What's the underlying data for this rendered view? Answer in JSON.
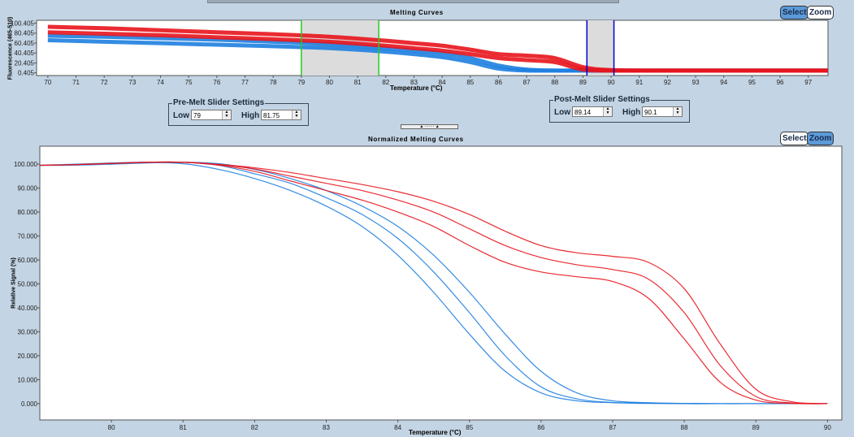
{
  "top_panel": {
    "title": "Melting Curves",
    "select_label": "Select",
    "zoom_label": "Zoom",
    "active_mode": "Select",
    "pre_melt": {
      "legend": "Pre-Melt Slider Settings",
      "low_label": "Low",
      "low_value": "79",
      "high_label": "High",
      "high_value": "81.75"
    },
    "post_melt": {
      "legend": "Post-Melt Slider Settings",
      "low_label": "Low",
      "low_value": "89.14",
      "high_label": "High",
      "high_value": "90.1"
    }
  },
  "bottom_panel": {
    "title": "Normalized Melting Curves",
    "select_label": "Select",
    "zoom_label": "Zoom",
    "active_mode": "Zoom"
  },
  "colors": {
    "group_red": "#e8141c",
    "group_blue": "#1e7fe0",
    "pre_melt_cursor": "#22cc22",
    "post_melt_cursor": "#0000cc",
    "slider_region": "#dcdcdc",
    "active_button": "#5b9ad8"
  },
  "chart_data": [
    {
      "type": "line",
      "title": "Melting Curves",
      "xlabel": "Temperature (°C)",
      "ylabel": "Fluorescence (465-510)",
      "xlim": [
        69.6,
        97.7
      ],
      "ylim": [
        -5,
        106
      ],
      "xticks": [
        70,
        71,
        72,
        73,
        74,
        75,
        76,
        77,
        78,
        79,
        80,
        81,
        82,
        83,
        84,
        85,
        86,
        87,
        88,
        89,
        90,
        91,
        92,
        93,
        94,
        95,
        96,
        97
      ],
      "yticks": [
        "100.405",
        "80.405",
        "60.405",
        "40.405",
        "20.405",
        "0.405"
      ],
      "ytick_values": [
        100.405,
        80.405,
        60.405,
        40.405,
        20.405,
        0.405
      ],
      "grid": false,
      "regions": [
        {
          "name": "pre-melt",
          "low": 79,
          "high": 81.75,
          "cursor_color": "#22cc22"
        },
        {
          "name": "post-melt",
          "low": 89.14,
          "high": 90.1,
          "cursor_color": "#0000cc"
        }
      ],
      "x": [
        70,
        72,
        74,
        76,
        78,
        80,
        82,
        83,
        84,
        85,
        86,
        87,
        88,
        89,
        90,
        92,
        97.7
      ],
      "series": [
        {
          "group": "blue",
          "color": "#1e7fe0",
          "values": [
            75,
            73,
            70,
            67,
            63,
            58,
            50,
            45,
            40,
            30,
            15,
            7,
            5,
            5,
            5,
            5,
            5
          ]
        },
        {
          "group": "blue",
          "color": "#1e7fe0",
          "values": [
            66,
            63,
            60,
            57,
            54,
            50,
            43,
            38,
            32,
            22,
            9,
            5,
            5,
            5,
            5,
            5,
            5
          ]
        },
        {
          "group": "red",
          "color": "#e8141c",
          "values": [
            93,
            90,
            86,
            82,
            78,
            73,
            65,
            60,
            55,
            47,
            38,
            35,
            30,
            12,
            6,
            5,
            5
          ]
        },
        {
          "group": "red",
          "color": "#e8141c",
          "values": [
            82,
            79,
            76,
            72,
            68,
            63,
            55,
            50,
            45,
            38,
            30,
            26,
            22,
            7,
            5,
            5,
            5
          ]
        }
      ]
    },
    {
      "type": "line",
      "title": "Normalized Melting Curves",
      "xlabel": "Temperature (°C)",
      "ylabel": "Relative Signal (%)",
      "xlim": [
        79.0,
        90.2
      ],
      "ylim": [
        -6.8,
        107.5
      ],
      "xticks": [
        80,
        81,
        82,
        83,
        84,
        85,
        86,
        87,
        88,
        89,
        90
      ],
      "yticks": [
        "100.000",
        "90.000",
        "80.000",
        "70.000",
        "60.000",
        "50.000",
        "40.000",
        "30.000",
        "20.000",
        "10.000",
        "0.000"
      ],
      "ytick_values": [
        100,
        90,
        80,
        70,
        60,
        50,
        40,
        30,
        20,
        10,
        0
      ],
      "grid": false,
      "x": [
        79,
        79.5,
        80,
        80.5,
        81,
        81.5,
        82,
        82.5,
        83,
        83.5,
        84,
        84.5,
        85,
        85.5,
        86,
        86.5,
        87,
        87.5,
        88,
        88.5,
        89,
        89.5,
        90
      ],
      "series": [
        {
          "group": "blue",
          "color": "#1e7fe0",
          "values": [
            99.5,
            99.8,
            100.3,
            100.8,
            100.8,
            99.5,
            96,
            92,
            86,
            79,
            69,
            55,
            38,
            20,
            7,
            2,
            0.5,
            0.2,
            0,
            0,
            0,
            0,
            0
          ]
        },
        {
          "group": "blue",
          "color": "#1e7fe0",
          "values": [
            99.6,
            100,
            100.5,
            100.8,
            100.2,
            97.8,
            94,
            89,
            82.5,
            74,
            62,
            46.5,
            29,
            13.5,
            4.5,
            1.2,
            0.4,
            0.1,
            0,
            0,
            0,
            0,
            0
          ]
        },
        {
          "group": "blue",
          "color": "#1e7fe0",
          "values": [
            99.5,
            99.6,
            100,
            100.5,
            100.8,
            100.2,
            97.8,
            94,
            89,
            82.5,
            74,
            62,
            46.5,
            29,
            13.5,
            4.5,
            1.2,
            0.4,
            0.1,
            0,
            0,
            0,
            0
          ]
        },
        {
          "group": "red",
          "color": "#e8141c",
          "values": [
            99.5,
            99.8,
            100.3,
            100.8,
            100.8,
            99.8,
            98,
            95,
            92,
            89,
            85,
            80,
            73,
            66,
            61,
            58,
            56,
            52,
            38,
            16,
            3,
            0.3,
            0
          ]
        },
        {
          "group": "red",
          "color": "#e8141c",
          "values": [
            99.5,
            99.8,
            100.3,
            100.8,
            100.8,
            99.6,
            97,
            93,
            89,
            85,
            80,
            74,
            66,
            59,
            55,
            53,
            51,
            44,
            27,
            9,
            1.5,
            0.1,
            0
          ]
        },
        {
          "group": "red",
          "color": "#e8141c",
          "values": [
            99.5,
            99.8,
            100.3,
            100.8,
            100.8,
            99.9,
            98.5,
            96.5,
            94,
            91.5,
            88.5,
            84.5,
            79,
            72,
            66,
            63,
            61.5,
            59,
            48,
            25,
            6,
            0.8,
            0
          ]
        }
      ]
    }
  ]
}
